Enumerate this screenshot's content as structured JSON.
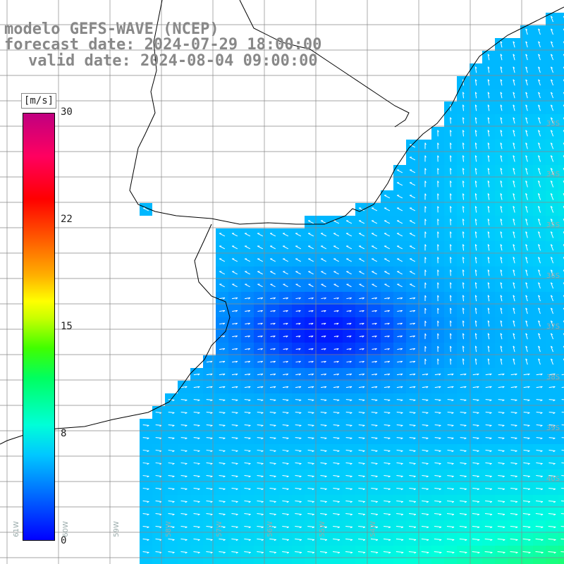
{
  "title": {
    "line1": "modelo GEFS-WAVE (NCEP)",
    "line2": "forecast date: 2024-07-29 18:00:00",
    "line3": "valid date: 2024-08-04 09:00:00"
  },
  "colorbar": {
    "unit": "[m/s]",
    "ticks": [
      "30",
      "22",
      "15",
      "8",
      "0"
    ],
    "colors": [
      "#0000ff",
      "#00c8ff",
      "#00ff60",
      "#ffff00",
      "#ff0000",
      "#c00080"
    ]
  },
  "lat_labels": [
    "33S",
    "34S",
    "35S",
    "36S",
    "37S",
    "38S",
    "39S",
    "40S"
  ],
  "lon_labels": [
    "61W",
    "60W",
    "59W",
    "58W",
    "57W",
    "56W",
    "55W",
    "54W"
  ],
  "colors": {
    "land": "#ffffff",
    "coast": "#000000",
    "grid": "#888888",
    "arrow": "#ffffff"
  }
}
